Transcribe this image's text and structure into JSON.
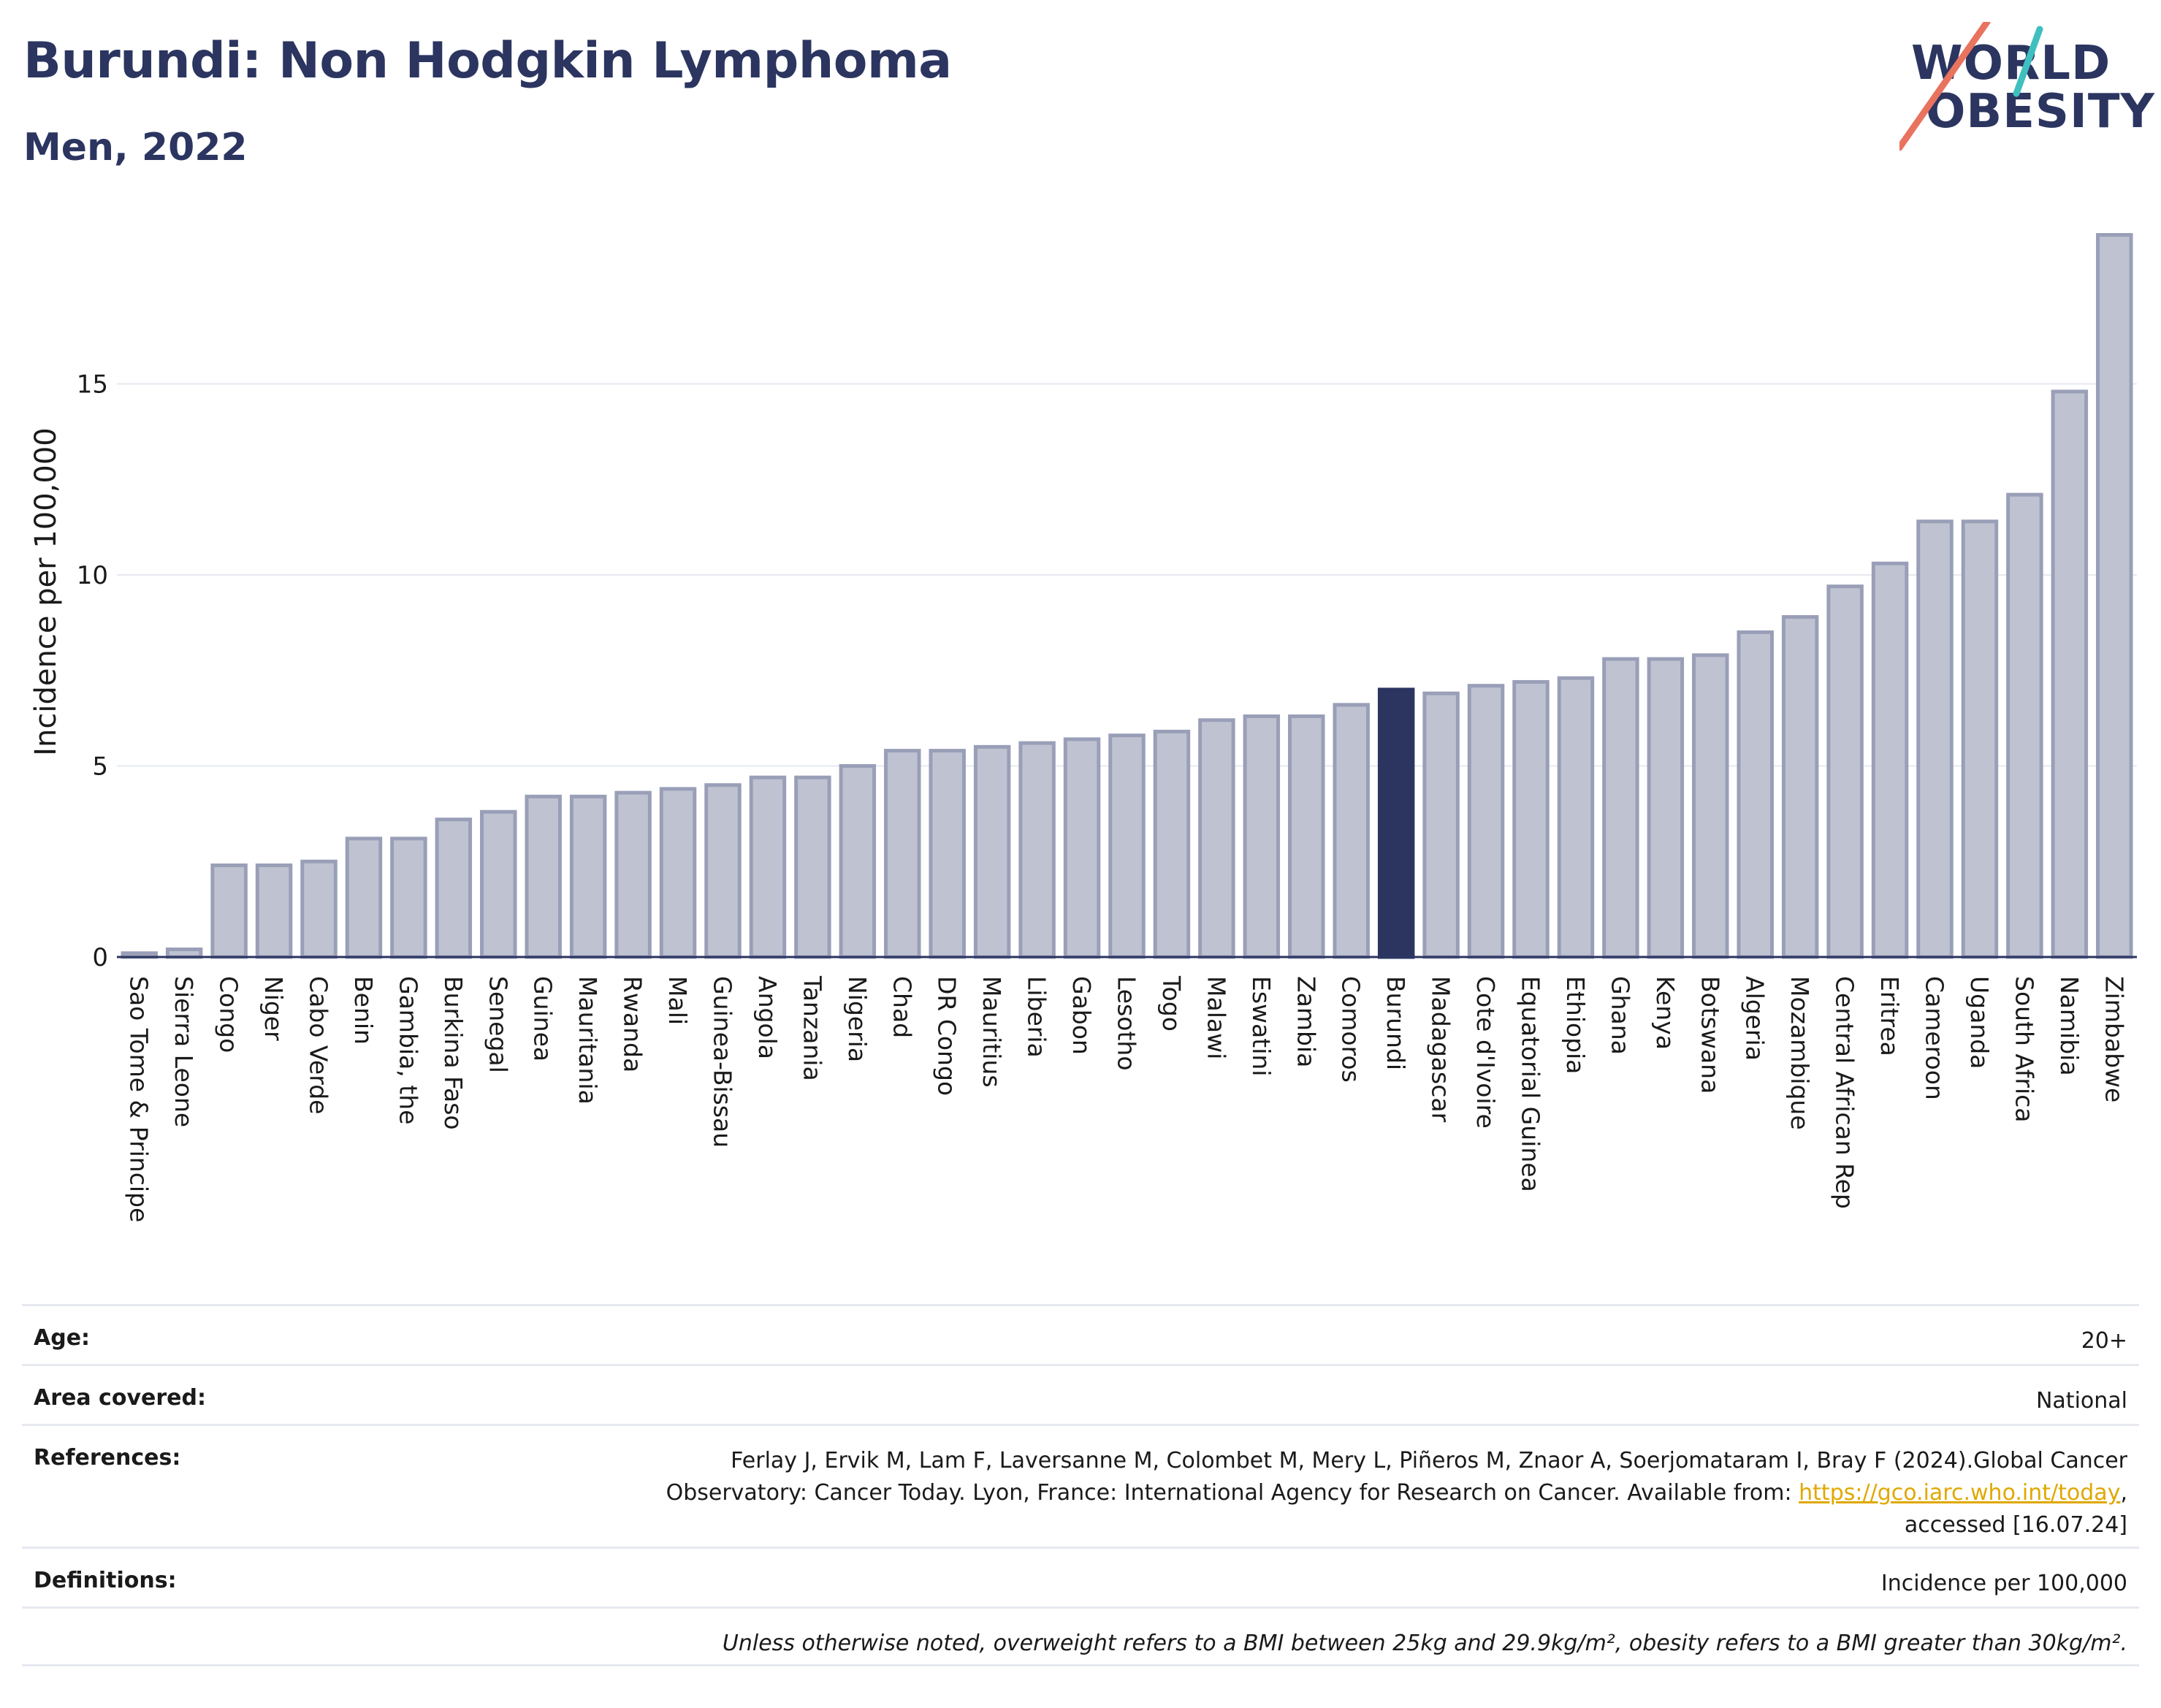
{
  "header": {
    "title": "Burundi: Non Hodgkin Lymphoma",
    "subtitle": "Men, 2022"
  },
  "logo": {
    "line1": "WORLD",
    "line2": "OBESITY"
  },
  "colors": {
    "highlight": "#2b3560",
    "bar_fill": "#bfc3d1",
    "bar_stroke": "#9a9fb8",
    "grid": "#e6e9f0",
    "brand_navy": "#2b3560",
    "logo_teal": "#3fbfbf",
    "logo_coral": "#e8735f"
  },
  "chart_data": {
    "type": "bar",
    "ylabel": "Incidence per 100,000",
    "xlabel": "",
    "ylim": [
      0,
      19
    ],
    "yticks": [
      0,
      5,
      10,
      15
    ],
    "grid": true,
    "highlight_category": "Burundi",
    "categories": [
      "Sao Tome & Principe",
      "Sierra Leone",
      "Congo",
      "Niger",
      "Cabo Verde",
      "Benin",
      "Gambia, the",
      "Burkina Faso",
      "Senegal",
      "Guinea",
      "Mauritania",
      "Rwanda",
      "Mali",
      "Guinea-Bissau",
      "Angola",
      "Tanzania",
      "Nigeria",
      "Chad",
      "DR Congo",
      "Mauritius",
      "Liberia",
      "Gabon",
      "Lesotho",
      "Togo",
      "Malawi",
      "Eswatini",
      "Zambia",
      "Comoros",
      "Burundi",
      "Madagascar",
      "Cote d'Ivoire",
      "Equatorial Guinea",
      "Ethiopia",
      "Ghana",
      "Kenya",
      "Botswana",
      "Algeria",
      "Mozambique",
      "Central African Rep",
      "Eritrea",
      "Cameroon",
      "Uganda",
      "South Africa",
      "Namibia",
      "Zimbabwe"
    ],
    "values": [
      0.1,
      0.2,
      2.4,
      2.4,
      2.5,
      3.1,
      3.1,
      3.6,
      3.8,
      4.2,
      4.2,
      4.3,
      4.4,
      4.5,
      4.7,
      4.7,
      5.0,
      5.4,
      5.4,
      5.5,
      5.6,
      5.7,
      5.8,
      5.9,
      6.2,
      6.3,
      6.3,
      6.6,
      7.0,
      6.9,
      7.1,
      7.2,
      7.3,
      7.8,
      7.8,
      7.9,
      8.5,
      8.9,
      9.7,
      10.3,
      11.4,
      11.4,
      12.1,
      14.8,
      18.9
    ]
  },
  "footer": {
    "age_label": "Age:",
    "age_value": "20+",
    "area_label": "Area covered:",
    "area_value": "National",
    "references_label": "References:",
    "references_line1": "Ferlay J, Ervik M, Lam F, Laversanne M, Colombet M, Mery L, Piñeros M, Znaor A, Soerjomataram I, Bray F (2024).Global Cancer",
    "references_line2_pre": "Observatory: Cancer Today. Lyon, France: International Agency for Research on Cancer. Available from: ",
    "references_link": "https://gco.iarc.who.int/today",
    "references_line2_post": ",",
    "references_line3": "accessed [16.07.24]",
    "definitions_label": "Definitions:",
    "definitions_value": "Incidence per 100,000",
    "note": "Unless otherwise noted, overweight refers to a BMI between 25kg and 29.9kg/m², obesity refers to a BMI greater than 30kg/m²."
  }
}
